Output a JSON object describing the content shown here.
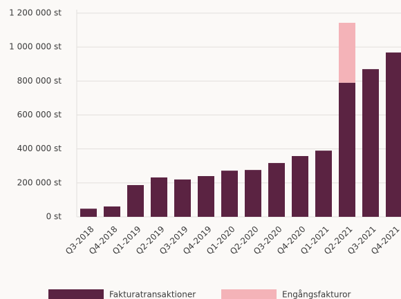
{
  "chart_data": {
    "type": "stacked_bar",
    "categories": [
      "Q3-2018",
      "Q4-2018",
      "Q1-2019",
      "Q2-2019",
      "Q3-2019",
      "Q4-2019",
      "Q1-2020",
      "Q2-2020",
      "Q3-2020",
      "Q4-2020",
      "Q1-2021",
      "Q2-2021",
      "Q3-2021",
      "Q4-2021"
    ],
    "series": [
      {
        "name": "Fakturatransaktioner",
        "color": "#5b2342",
        "values": [
          48000,
          61000,
          187000,
          232000,
          220000,
          240000,
          272000,
          276000,
          317000,
          358000,
          390000,
          790000,
          870000,
          968000
        ]
      },
      {
        "name": "Engångsfakturor",
        "color": "#f4b3b8",
        "values": [
          null,
          null,
          null,
          null,
          null,
          null,
          null,
          null,
          null,
          null,
          null,
          353000,
          null,
          null
        ]
      }
    ],
    "ylim": [
      0,
      1200000
    ],
    "yticks": [
      {
        "value": 0,
        "label": "0 st"
      },
      {
        "value": 200000,
        "label": "200 000 st"
      },
      {
        "value": 400000,
        "label": "400 000 st"
      },
      {
        "value": 600000,
        "label": "600 000 st"
      },
      {
        "value": 800000,
        "label": "800 000 st"
      },
      {
        "value": 1000000,
        "label": "1 000 000 st"
      },
      {
        "value": 1200000,
        "label": "1 200 000 st"
      }
    ],
    "grid": true,
    "legend": "bottom"
  }
}
